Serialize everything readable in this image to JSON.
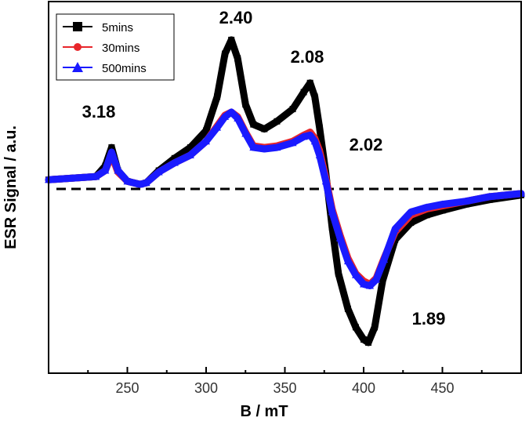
{
  "chart_data": {
    "type": "line",
    "xlabel": "B / mT",
    "ylabel": "ESR Signal / a.u.",
    "xlim": [
      200,
      500
    ],
    "ylim": [
      -1.0,
      1.0
    ],
    "xticks": [
      250,
      300,
      350,
      400,
      450
    ],
    "yticks_visible": false,
    "grid": false,
    "legend_position": "top-left",
    "baseline": {
      "y": 0,
      "style": "dashed",
      "color": "#000000"
    },
    "series": [
      {
        "name": "5mins",
        "color": "#000000",
        "marker": "square",
        "x": [
          200,
          215,
          230,
          236,
          240,
          244,
          250,
          258,
          262,
          270,
          280,
          290,
          300,
          307,
          312,
          316,
          320,
          325,
          330,
          337,
          345,
          355,
          362,
          366,
          369,
          372,
          376,
          380,
          384,
          390,
          395,
          400,
          403,
          407,
          412,
          420,
          430,
          440,
          450,
          465,
          480,
          500
        ],
        "y": [
          0.06,
          0.07,
          0.08,
          0.15,
          0.27,
          0.12,
          0.05,
          0.03,
          0.04,
          0.12,
          0.2,
          0.27,
          0.38,
          0.6,
          0.88,
          0.97,
          0.85,
          0.55,
          0.42,
          0.39,
          0.44,
          0.52,
          0.63,
          0.69,
          0.6,
          0.4,
          0.1,
          -0.25,
          -0.55,
          -0.78,
          -0.9,
          -0.98,
          -1.0,
          -0.9,
          -0.6,
          -0.33,
          -0.22,
          -0.17,
          -0.14,
          -0.1,
          -0.07,
          -0.04
        ]
      },
      {
        "name": "30mins",
        "color": "#e8262b",
        "marker": "circle",
        "x": [
          200,
          215,
          230,
          236,
          240,
          244,
          250,
          258,
          262,
          270,
          280,
          290,
          300,
          307,
          312,
          316,
          320,
          325,
          330,
          337,
          345,
          355,
          362,
          366,
          369,
          372,
          376,
          380,
          385,
          390,
          395,
          400,
          404,
          408,
          413,
          420,
          430,
          440,
          450,
          465,
          480,
          500
        ],
        "y": [
          0.06,
          0.07,
          0.08,
          0.12,
          0.22,
          0.11,
          0.05,
          0.03,
          0.04,
          0.11,
          0.17,
          0.22,
          0.31,
          0.41,
          0.48,
          0.5,
          0.47,
          0.37,
          0.28,
          0.27,
          0.28,
          0.31,
          0.35,
          0.37,
          0.33,
          0.25,
          0.07,
          -0.13,
          -0.3,
          -0.45,
          -0.55,
          -0.6,
          -0.62,
          -0.58,
          -0.45,
          -0.28,
          -0.17,
          -0.13,
          -0.11,
          -0.08,
          -0.05,
          -0.03
        ]
      },
      {
        "name": "500mins",
        "color": "#1a1aff",
        "marker": "triangle",
        "x": [
          200,
          215,
          230,
          236,
          240,
          244,
          250,
          258,
          262,
          270,
          280,
          290,
          300,
          307,
          312,
          316,
          320,
          325,
          330,
          337,
          345,
          355,
          362,
          366,
          369,
          372,
          376,
          380,
          385,
          390,
          395,
          400,
          404,
          408,
          413,
          420,
          430,
          440,
          450,
          465,
          480,
          500
        ],
        "y": [
          0.06,
          0.07,
          0.08,
          0.12,
          0.24,
          0.12,
          0.05,
          0.03,
          0.04,
          0.11,
          0.17,
          0.22,
          0.31,
          0.4,
          0.47,
          0.5,
          0.46,
          0.36,
          0.27,
          0.26,
          0.27,
          0.3,
          0.34,
          0.35,
          0.31,
          0.22,
          0.05,
          -0.15,
          -0.32,
          -0.47,
          -0.56,
          -0.62,
          -0.63,
          -0.59,
          -0.46,
          -0.26,
          -0.15,
          -0.12,
          -0.1,
          -0.08,
          -0.05,
          -0.03
        ]
      }
    ],
    "annotations": [
      {
        "text": "3.18",
        "x": 240
      },
      {
        "text": "2.40",
        "x": 316
      },
      {
        "text": "2.08",
        "x": 366
      },
      {
        "text": "2.02",
        "x": 400
      },
      {
        "text": "1.89",
        "x": 403
      }
    ]
  }
}
